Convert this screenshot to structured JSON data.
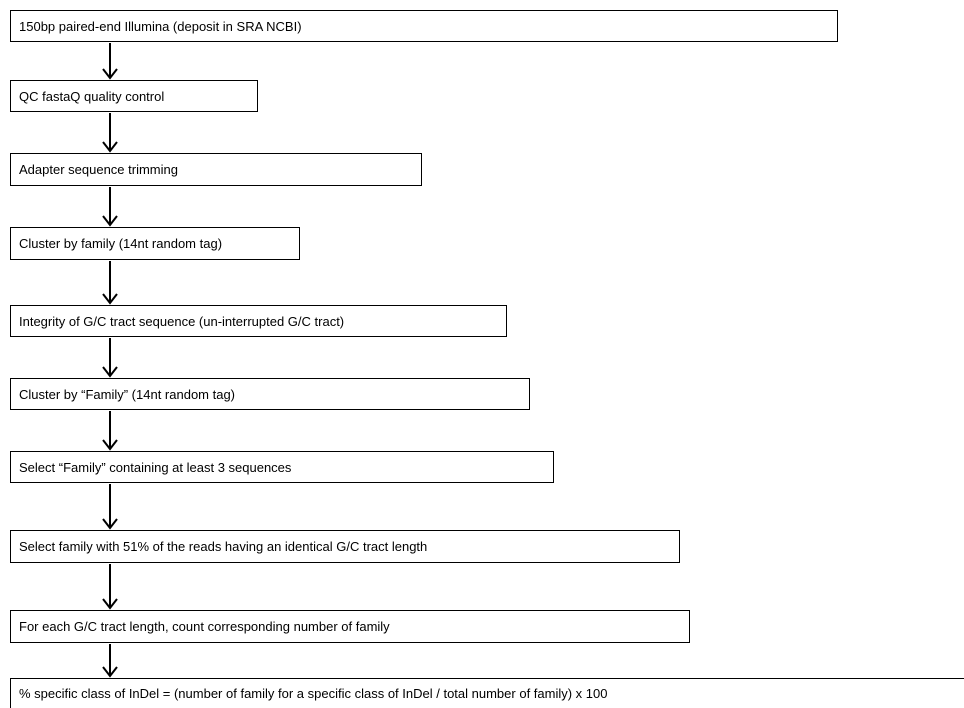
{
  "flowchart": {
    "steps": [
      {
        "label": "150bp paired-end Illumina (deposit in SRA NCBI)"
      },
      {
        "label": "QC fastaQ quality control"
      },
      {
        "label": "Adapter sequence trimming"
      },
      {
        "label": "Cluster by family (14nt random tag)"
      },
      {
        "label": "Integrity of G/C tract sequence (un-interrupted G/C tract)"
      },
      {
        "label": "Cluster by “Family” (14nt random tag)"
      },
      {
        "label": "Select “Family” containing at least 3 sequences"
      },
      {
        "label": "Select family with 51% of the reads having an identical G/C tract length"
      },
      {
        "label": "For each G/C tract length, count corresponding number of family"
      },
      {
        "label": "% specific  class of InDel = (number of family for a specific class of InDel / total number of family) x 100"
      }
    ]
  },
  "colors": {
    "box_border": "#000000",
    "arrow": "#000000",
    "text": "#000000",
    "background": "#ffffff"
  }
}
